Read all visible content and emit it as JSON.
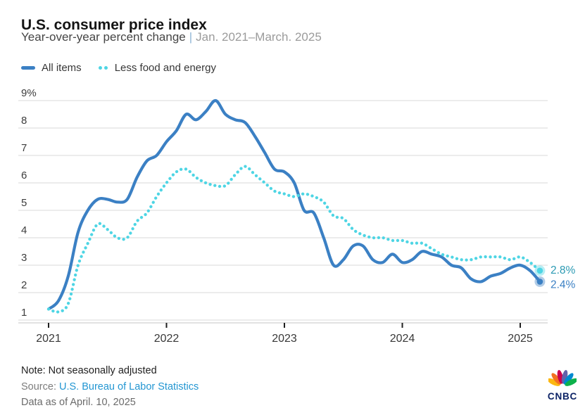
{
  "header": {
    "title": "U.S. consumer price index",
    "subtitle": "Year-over-year percent change",
    "separator": "|",
    "date_range": "Jan. 2021–March. 2025"
  },
  "legend": {
    "items": [
      {
        "label": "All items"
      },
      {
        "label": "Less food and energy"
      }
    ]
  },
  "chart_data": {
    "type": "line",
    "title": "U.S. consumer price index",
    "xlabel": "",
    "ylabel": "Year-over-year percent change",
    "x_start": "2021-01",
    "x_end": "2025-03",
    "x_tick_labels": [
      "2021",
      "2022",
      "2023",
      "2024",
      "2025"
    ],
    "y_tick_labels": [
      "9%",
      "8",
      "7",
      "6",
      "5",
      "4",
      "3",
      "2",
      "1"
    ],
    "ylim": [
      1,
      9
    ],
    "grid": true,
    "legend_position": "top-left",
    "series": [
      {
        "name": "All items",
        "style": "solid",
        "color": "#3b80c4",
        "end_label": "2.4%",
        "end_label_color": "#3b80c4",
        "values": [
          1.4,
          1.7,
          2.6,
          4.2,
          5.0,
          5.4,
          5.4,
          5.3,
          5.4,
          6.2,
          6.8,
          7.0,
          7.5,
          7.9,
          8.5,
          8.3,
          8.6,
          9.0,
          8.5,
          8.3,
          8.2,
          7.7,
          7.1,
          6.5,
          6.4,
          6.0,
          5.0,
          4.9,
          4.0,
          3.0,
          3.2,
          3.7,
          3.7,
          3.2,
          3.1,
          3.4,
          3.1,
          3.2,
          3.5,
          3.4,
          3.3,
          3.0,
          2.9,
          2.5,
          2.4,
          2.6,
          2.7,
          2.9,
          3.0,
          2.8,
          2.4
        ]
      },
      {
        "name": "Less food and energy",
        "style": "dotted",
        "color": "#4ed5e4",
        "end_label": "2.8%",
        "end_label_color": "#2b9ab3",
        "values": [
          1.4,
          1.3,
          1.6,
          3.0,
          3.8,
          4.5,
          4.3,
          4.0,
          4.0,
          4.6,
          4.9,
          5.5,
          6.0,
          6.4,
          6.5,
          6.2,
          6.0,
          5.9,
          5.9,
          6.3,
          6.6,
          6.3,
          6.0,
          5.7,
          5.6,
          5.5,
          5.6,
          5.5,
          5.3,
          4.8,
          4.7,
          4.3,
          4.1,
          4.0,
          4.0,
          3.9,
          3.9,
          3.8,
          3.8,
          3.6,
          3.4,
          3.3,
          3.2,
          3.2,
          3.3,
          3.3,
          3.3,
          3.2,
          3.3,
          3.1,
          2.8
        ]
      }
    ]
  },
  "footer": {
    "note": "Note: Not seasonally adjusted",
    "source_label": "Source:",
    "source_link": "U.S. Bureau of Labor Statistics",
    "data_as_of": "Data as of April. 10, 2025"
  },
  "branding": {
    "name": "CNBC",
    "peacock_colors": [
      "#fcb711",
      "#f37021",
      "#cc004c",
      "#6460aa",
      "#0089d0",
      "#0db14b"
    ],
    "text_color": "#0b2265"
  }
}
